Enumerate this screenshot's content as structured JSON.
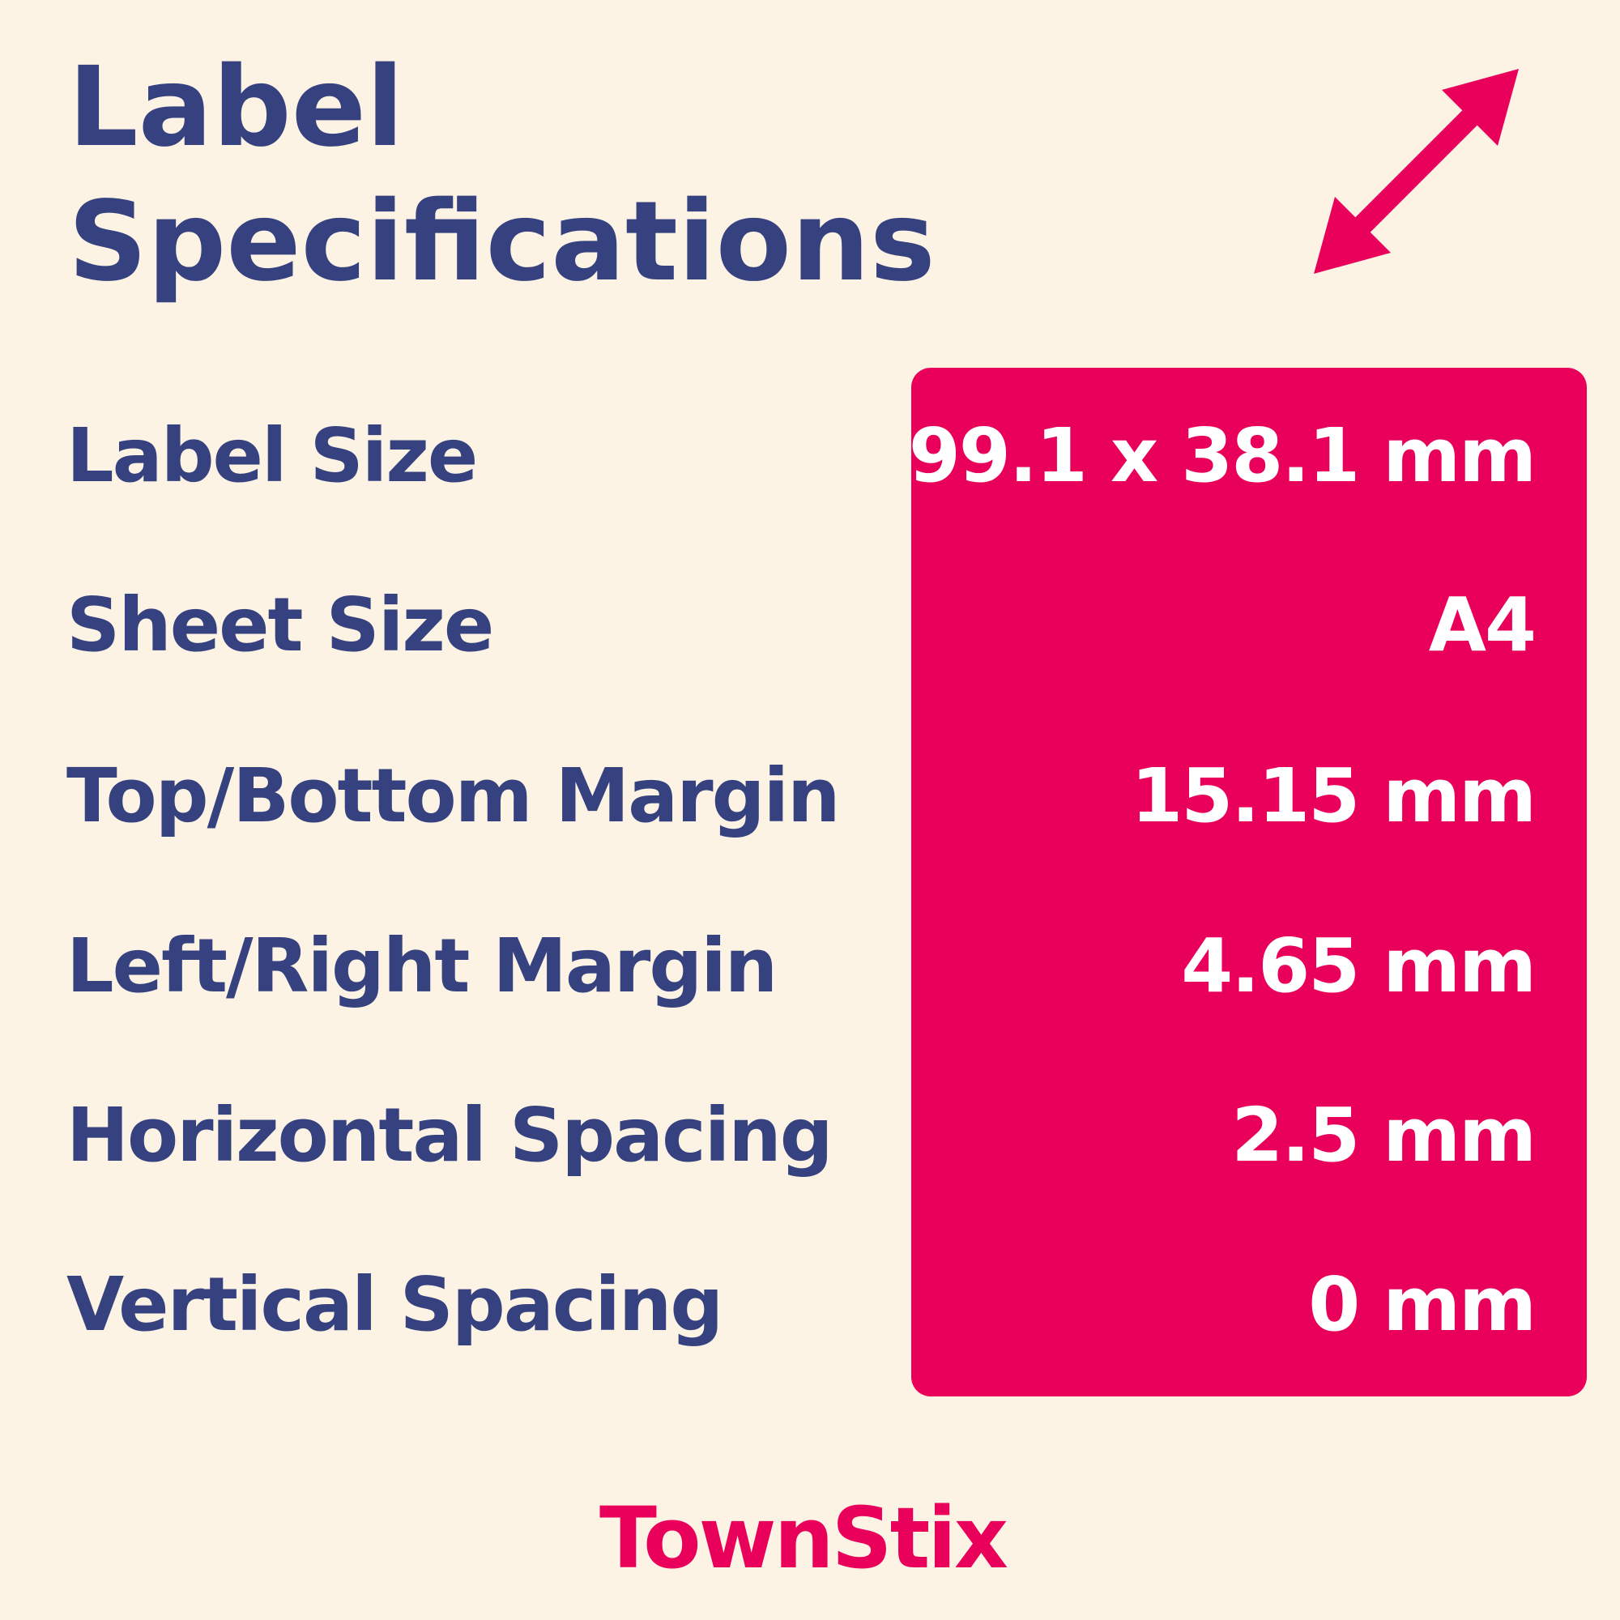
{
  "title": "Label Specifications",
  "specs": [
    {
      "label": "Label Size",
      "value": "99.1 x 38.1 mm"
    },
    {
      "label": "Sheet Size",
      "value": "A4"
    },
    {
      "label": "Top/Bottom Margin",
      "value": "15.15 mm"
    },
    {
      "label": "Left/Right Margin",
      "value": "4.65 mm"
    },
    {
      "label": "Horizontal Spacing",
      "value": "2.5 mm"
    },
    {
      "label": "Vertical Spacing",
      "value": "0 mm"
    }
  ],
  "brand": "TownStix"
}
